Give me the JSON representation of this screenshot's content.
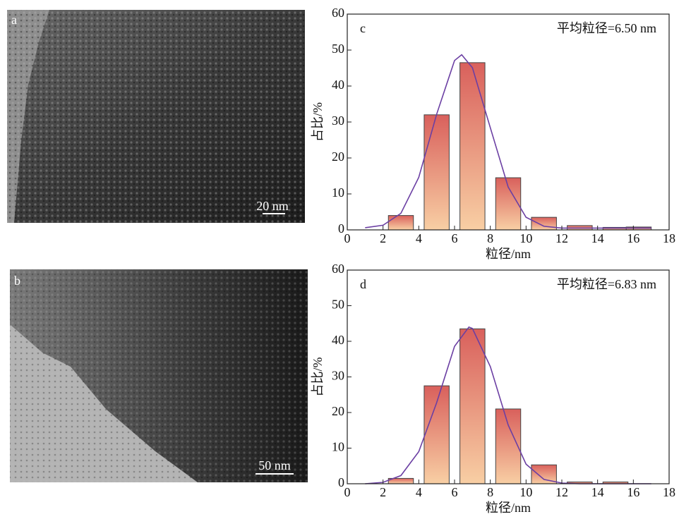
{
  "images": [
    {
      "label": "a",
      "scale_bar": "20 nm"
    },
    {
      "label": "b",
      "scale_bar": "50 nm"
    }
  ],
  "chart_data": [
    {
      "type": "bar",
      "panel": "c",
      "annotation": "平均粒径=6.50 nm",
      "x_label": "粒径/nm",
      "y_label": "占比/%",
      "x": [
        3,
        5,
        7,
        9,
        11,
        13,
        15,
        16.3
      ],
      "values": [
        4,
        32,
        46.5,
        14.5,
        3.5,
        1.2,
        0.7,
        0.8
      ],
      "colors": [
        "#d9605c",
        "#f8cfa4"
      ],
      "fit": {
        "color": "#6b3fa3",
        "x": [
          1,
          2,
          3,
          4,
          5,
          6,
          6.4,
          7,
          8,
          9,
          10,
          11,
          12,
          13,
          14,
          15,
          16,
          17
        ],
        "values": [
          0.6,
          1.3,
          4.6,
          14.6,
          32.2,
          47.1,
          48.7,
          45.1,
          28.4,
          11.9,
          3.5,
          1.0,
          0.5,
          0.5,
          0.5,
          0.5,
          0.5,
          0.5
        ]
      },
      "xlim": [
        0,
        18
      ],
      "xticks": [
        0,
        2,
        4,
        6,
        8,
        10,
        12,
        14,
        16,
        18
      ],
      "ylim": [
        0,
        60
      ],
      "yticks": [
        0,
        10,
        20,
        30,
        40,
        50,
        60
      ]
    },
    {
      "type": "bar",
      "panel": "d",
      "annotation": "平均粒径=6.83 nm",
      "x_label": "粒径/nm",
      "y_label": "占比/%",
      "x": [
        3,
        5,
        7,
        9,
        11,
        13,
        15
      ],
      "values": [
        1.5,
        27.5,
        43.5,
        21,
        5.3,
        0.5,
        0.5
      ],
      "colors": [
        "#d9605c",
        "#f8cfa4"
      ],
      "fit": {
        "color": "#6b3fa3",
        "x": [
          1,
          2,
          3,
          4,
          5,
          6,
          6.8,
          7,
          8,
          9,
          10,
          11,
          12,
          13,
          14,
          15,
          16,
          17
        ],
        "values": [
          0,
          0.4,
          2.3,
          9.0,
          22.8,
          38.6,
          44,
          43.6,
          32.9,
          16.5,
          5.5,
          1.2,
          0.2,
          0,
          0,
          0,
          0,
          0
        ]
      },
      "xlim": [
        0,
        18
      ],
      "xticks": [
        0,
        2,
        4,
        6,
        8,
        10,
        12,
        14,
        16,
        18
      ],
      "ylim": [
        0,
        60
      ],
      "yticks": [
        0,
        10,
        20,
        30,
        40,
        50,
        60
      ]
    }
  ]
}
